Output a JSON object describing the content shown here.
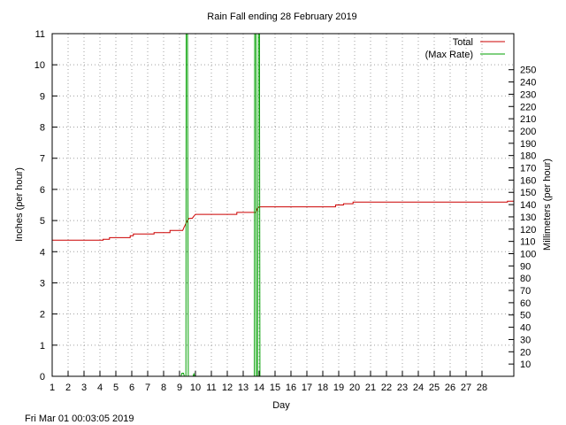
{
  "chart_data": {
    "type": "line",
    "title": "Rain Fall ending 28 February 2019",
    "xlabel": "Day",
    "ylabel": "Inches (per hour)",
    "y2label": "Millimeters (per hour)",
    "xlim": [
      1,
      30
    ],
    "ylim": [
      0,
      11
    ],
    "y2lim": [
      0,
      279.4
    ],
    "x_ticks": [
      1,
      2,
      3,
      4,
      5,
      6,
      7,
      8,
      9,
      10,
      11,
      12,
      13,
      14,
      15,
      16,
      17,
      18,
      19,
      20,
      21,
      22,
      23,
      24,
      25,
      26,
      27,
      28
    ],
    "y_ticks": [
      0,
      1,
      2,
      3,
      4,
      5,
      6,
      7,
      8,
      9,
      10,
      11
    ],
    "y2_ticks": [
      10,
      20,
      30,
      40,
      50,
      60,
      70,
      80,
      90,
      100,
      110,
      120,
      130,
      140,
      150,
      160,
      170,
      180,
      190,
      200,
      210,
      220,
      230,
      240,
      250
    ],
    "grid": true,
    "legend_position": "top-right",
    "series": [
      {
        "name": "Total",
        "color": "#cc0000",
        "points": [
          [
            1.0,
            4.37
          ],
          [
            4.2,
            4.37
          ],
          [
            4.2,
            4.4
          ],
          [
            4.6,
            4.4
          ],
          [
            4.6,
            4.45
          ],
          [
            5.9,
            4.45
          ],
          [
            5.9,
            4.51
          ],
          [
            6.1,
            4.51
          ],
          [
            6.1,
            4.57
          ],
          [
            7.4,
            4.57
          ],
          [
            7.4,
            4.61
          ],
          [
            8.4,
            4.61
          ],
          [
            8.4,
            4.68
          ],
          [
            9.2,
            4.68
          ],
          [
            9.3,
            4.8
          ],
          [
            9.4,
            4.9
          ],
          [
            9.5,
            5.0
          ],
          [
            9.6,
            5.07
          ],
          [
            9.8,
            5.07
          ],
          [
            9.9,
            5.14
          ],
          [
            10.0,
            5.2
          ],
          [
            12.6,
            5.2
          ],
          [
            12.6,
            5.26
          ],
          [
            13.8,
            5.26
          ],
          [
            13.9,
            5.4
          ],
          [
            14.0,
            5.44
          ],
          [
            18.8,
            5.44
          ],
          [
            18.8,
            5.5
          ],
          [
            19.3,
            5.5
          ],
          [
            19.3,
            5.54
          ],
          [
            19.9,
            5.54
          ],
          [
            19.9,
            5.59
          ],
          [
            29.6,
            5.59
          ],
          [
            29.6,
            5.62
          ],
          [
            30.0,
            5.62
          ]
        ]
      },
      {
        "name": "(Max Rate)",
        "color": "#00a000",
        "points": [
          [
            9.1,
            0.0
          ],
          [
            9.15,
            0.1
          ],
          [
            9.25,
            0.1
          ],
          [
            9.3,
            0.0
          ],
          [
            9.4,
            0.0
          ],
          [
            9.42,
            11.0
          ],
          [
            9.5,
            11.0
          ],
          [
            9.55,
            0.0
          ],
          [
            9.85,
            0.0
          ],
          [
            9.9,
            0.08
          ],
          [
            9.95,
            0.0
          ],
          [
            13.7,
            0.0
          ],
          [
            13.72,
            11.0
          ],
          [
            13.8,
            11.0
          ],
          [
            13.82,
            0.0
          ],
          [
            13.9,
            0.0
          ],
          [
            13.95,
            11.0
          ],
          [
            14.02,
            11.0
          ],
          [
            14.05,
            0.0
          ]
        ]
      }
    ],
    "footer": "Fri Mar 01 00:03:05 2019"
  }
}
